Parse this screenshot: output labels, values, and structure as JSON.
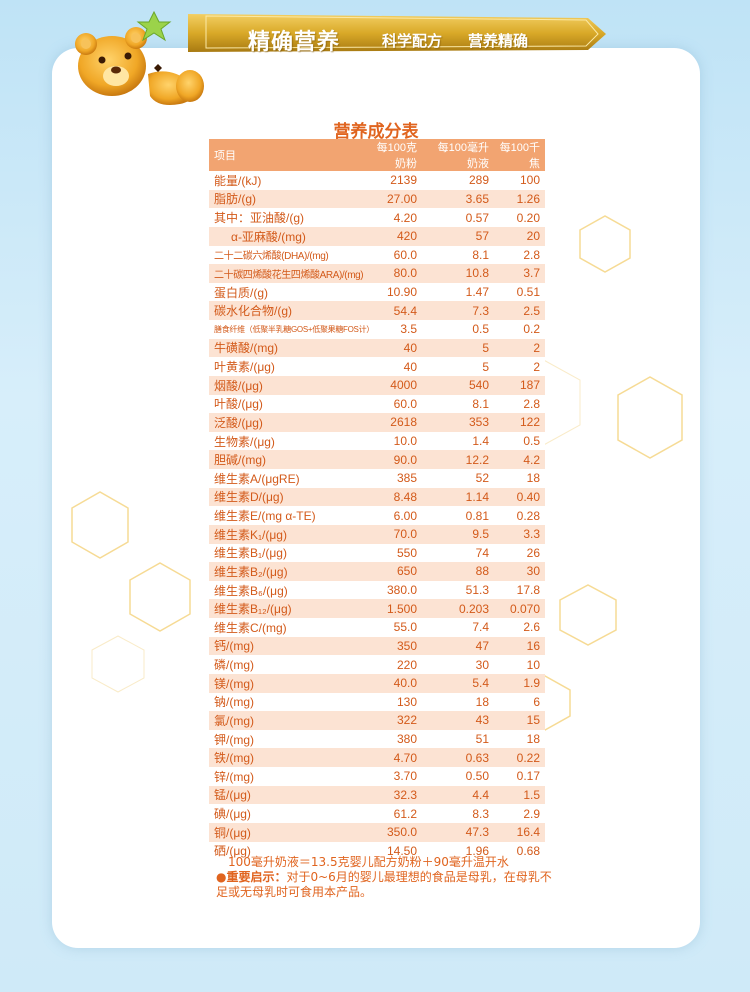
{
  "banner": {
    "title": "精确营养",
    "subtitle_1": "科学配方",
    "subtitle_2": "营养精确"
  },
  "table": {
    "title": "营养成分表",
    "headers": [
      "项目",
      "每100克奶粉",
      "每100毫升奶液",
      "每100千焦"
    ],
    "rows": [
      [
        "能量/(kJ)",
        "2139",
        "289",
        "100"
      ],
      [
        "脂肪/(g)",
        "27.00",
        "3.65",
        "1.26"
      ],
      [
        "其中：亚油酸/(g)",
        "4.20",
        "0.57",
        "0.20"
      ],
      [
        "α-亚麻酸/(mg)",
        "420",
        "57",
        "20"
      ],
      [
        "二十二碳六烯酸(DHA)/(mg)",
        "60.0",
        "8.1",
        "2.8"
      ],
      [
        "二十碳四烯酸花生四烯酸ARA)/(mg)",
        "80.0",
        "10.8",
        "3.7"
      ],
      [
        "蛋白质/(g)",
        "10.90",
        "1.47",
        "0.51"
      ],
      [
        "碳水化合物/(g)",
        "54.4",
        "7.3",
        "2.5"
      ],
      [
        "膳食纤维（低聚半乳糖GOS+低聚果糖FOS计）/(g)",
        "3.5",
        "0.5",
        "0.2"
      ],
      [
        "牛磺酸/(mg)",
        "40",
        "5",
        "2"
      ],
      [
        "叶黄素/(μg)",
        "40",
        "5",
        "2"
      ],
      [
        "烟酸/(μg)",
        "4000",
        "540",
        "187"
      ],
      [
        "叶酸/(μg)",
        "60.0",
        "8.1",
        "2.8"
      ],
      [
        "泛酸/(μg)",
        "2618",
        "353",
        "122"
      ],
      [
        "生物素/(μg)",
        "10.0",
        "1.4",
        "0.5"
      ],
      [
        "胆碱/(mg)",
        "90.0",
        "12.2",
        "4.2"
      ],
      [
        "维生素A/(μgRE)",
        "385",
        "52",
        "18"
      ],
      [
        "维生素D/(μg)",
        "8.48",
        "1.14",
        "0.40"
      ],
      [
        "维生素E/(mg α-TE)",
        "6.00",
        "0.81",
        "0.28"
      ],
      [
        "维生素K₁/(μg)",
        "70.0",
        "9.5",
        "3.3"
      ],
      [
        "维生素B₁/(μg)",
        "550",
        "74",
        "26"
      ],
      [
        "维生素B₂/(μg)",
        "650",
        "88",
        "30"
      ],
      [
        "维生素B₆/(μg)",
        "380.0",
        "51.3",
        "17.8"
      ],
      [
        "维生素B₁₂/(μg)",
        "1.500",
        "0.203",
        "0.070"
      ],
      [
        "维生素C/(mg)",
        "55.0",
        "7.4",
        "2.6"
      ],
      [
        "钙/(mg)",
        "350",
        "47",
        "16"
      ],
      [
        "磷/(mg)",
        "220",
        "30",
        "10"
      ],
      [
        "镁/(mg)",
        "40.0",
        "5.4",
        "1.9"
      ],
      [
        "钠/(mg)",
        "130",
        "18",
        "6"
      ],
      [
        "氯/(mg)",
        "322",
        "43",
        "15"
      ],
      [
        "钾/(mg)",
        "380",
        "51",
        "18"
      ],
      [
        "铁/(mg)",
        "4.70",
        "0.63",
        "0.22"
      ],
      [
        "锌/(mg)",
        "3.70",
        "0.50",
        "0.17"
      ],
      [
        "锰/(μg)",
        "32.3",
        "4.4",
        "1.5"
      ],
      [
        "碘/(μg)",
        "61.2",
        "8.3",
        "2.9"
      ],
      [
        "铜/(μg)",
        "350.0",
        "47.3",
        "16.4"
      ],
      [
        "硒/(μg)",
        "14.50",
        "1.96",
        "0.68"
      ]
    ]
  },
  "footnote": {
    "preparation": "100毫升奶液＝13.5克婴儿配方奶粉＋90毫升温开水",
    "notice_label": "●重要启示：",
    "notice_text": "对于0~6月的婴儿最理想的食品是母乳，在母乳不足或无母乳时可食用本产品。"
  },
  "colors": {
    "accent": "#e0641f",
    "header_bg": "#f2a471",
    "stripe_bg": "#fce3d3",
    "ribbon_gold": "#c99a1e",
    "background": "#cfeaf8"
  },
  "icons": [
    "teddy-bear-mascot",
    "hexagon-decoration"
  ]
}
